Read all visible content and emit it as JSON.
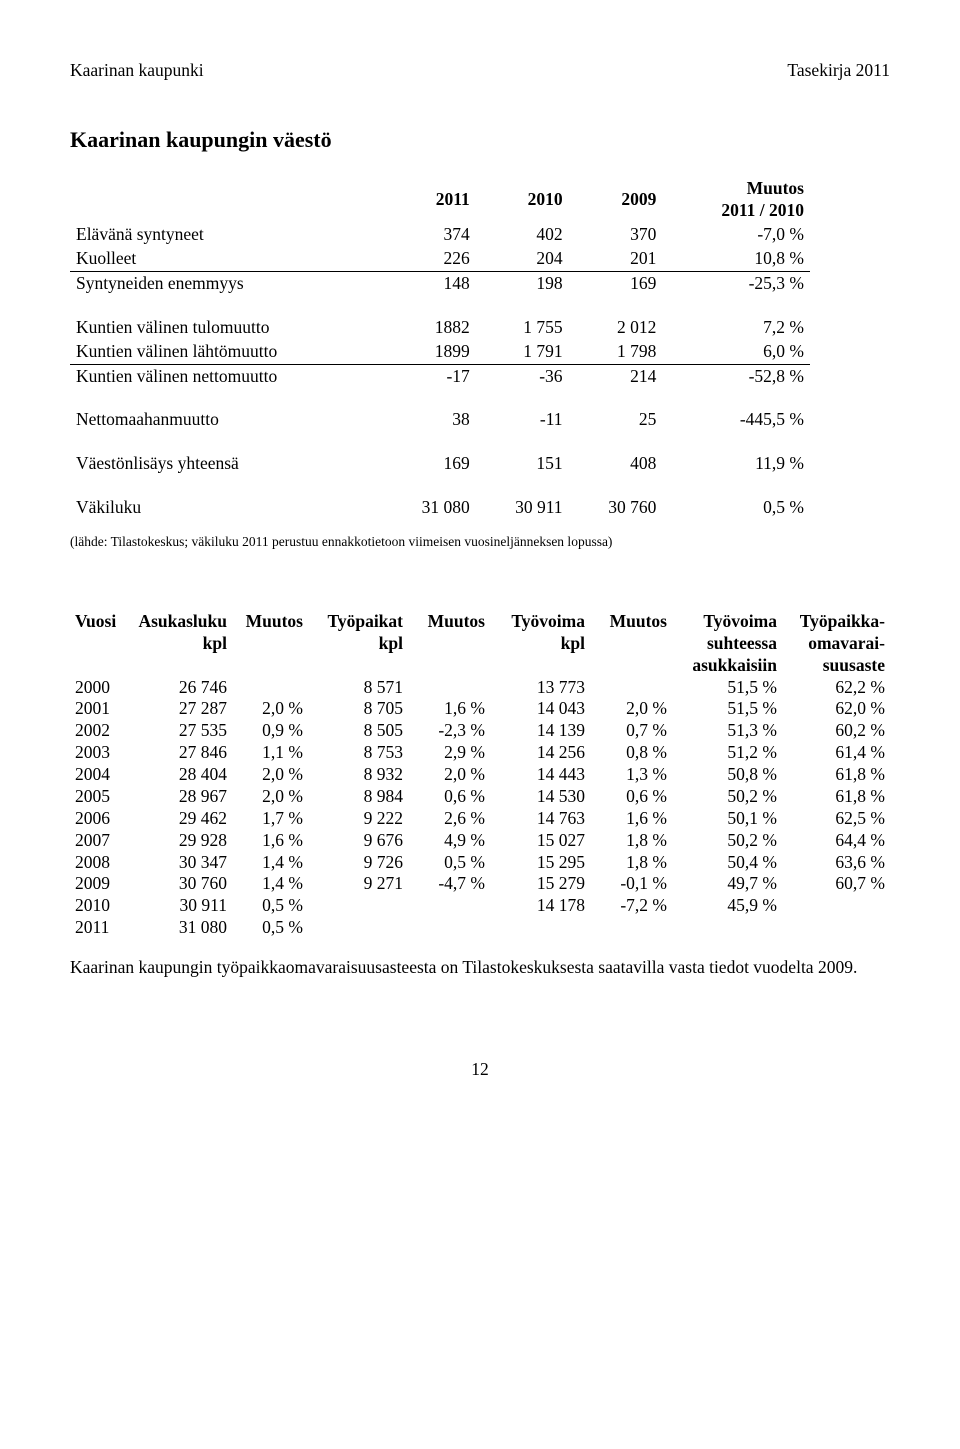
{
  "header": {
    "left": "Kaarinan kaupunki",
    "right": "Tasekirja 2011"
  },
  "title": "Kaarinan kaupungin väestö",
  "t1": {
    "head": {
      "c1": "",
      "c2": "2011",
      "c3": "2010",
      "c4": "2009",
      "c5a": "Muutos",
      "c5b": "2011 / 2010"
    },
    "rows": [
      {
        "label": "Elävänä syntyneet",
        "a": "374",
        "b": "402",
        "c": "370",
        "d": "-7,0 %",
        "border": false
      },
      {
        "label": "Kuolleet",
        "a": "226",
        "b": "204",
        "c": "201",
        "d": "10,8 %",
        "border": true
      },
      {
        "label": "Syntyneiden enemmyys",
        "a": "148",
        "b": "198",
        "c": "169",
        "d": "-25,3 %",
        "border": false
      }
    ],
    "rows2": [
      {
        "label": "Kuntien välinen tulomuutto",
        "a": "1882",
        "b": "1 755",
        "c": "2 012",
        "d": "7,2 %",
        "border": false
      },
      {
        "label": "Kuntien välinen lähtömuutto",
        "a": "1899",
        "b": "1 791",
        "c": "1 798",
        "d": "6,0 %",
        "border": true
      },
      {
        "label": "Kuntien välinen nettomuutto",
        "a": "-17",
        "b": "-36",
        "c": "214",
        "d": "-52,8 %",
        "border": false
      }
    ],
    "rows3": [
      {
        "label": "Nettomaahanmuutto",
        "a": "38",
        "b": "-11",
        "c": "25",
        "d": "-445,5 %"
      }
    ],
    "rows4": [
      {
        "label": "Väestönlisäys yhteensä",
        "a": "169",
        "b": "151",
        "c": "408",
        "d": "11,9 %"
      }
    ],
    "rows5": [
      {
        "label": "Väkiluku",
        "a": "31 080",
        "b": "30 911",
        "c": "30 760",
        "d": "0,5 %"
      }
    ]
  },
  "source_note": "(lähde: Tilastokeskus; väkiluku 2011 perustuu ennakkotietoon viimeisen vuosineljänneksen lopussa)",
  "t2": {
    "head": {
      "vuosi": "Vuosi",
      "asuk1": "Asukasluku",
      "asuk2": "kpl",
      "m1": "Muutos",
      "tyop1": "Työpaikat",
      "tyop2": "kpl",
      "m2": "Muutos",
      "tv1": "Työvoima",
      "tv2": "kpl",
      "m3": "Muutos",
      "suh1": "Työvoima",
      "suh2": "suhteessa",
      "suh3": "asukkaisiin",
      "oma1": "Työpaikka-",
      "oma2": "omavarai-",
      "oma3": "suusaste"
    },
    "rows": [
      {
        "y": "2000",
        "a": "26 746",
        "m1": "",
        "t": "8 571",
        "m2": "",
        "v": "13 773",
        "m3": "",
        "s": "51,5 %",
        "o": "62,2 %"
      },
      {
        "y": "2001",
        "a": "27 287",
        "m1": "2,0 %",
        "t": "8 705",
        "m2": "1,6 %",
        "v": "14 043",
        "m3": "2,0 %",
        "s": "51,5 %",
        "o": "62,0 %"
      },
      {
        "y": "2002",
        "a": "27 535",
        "m1": "0,9 %",
        "t": "8 505",
        "m2": "-2,3 %",
        "v": "14 139",
        "m3": "0,7 %",
        "s": "51,3 %",
        "o": "60,2 %"
      },
      {
        "y": "2003",
        "a": "27 846",
        "m1": "1,1 %",
        "t": "8 753",
        "m2": "2,9 %",
        "v": "14 256",
        "m3": "0,8 %",
        "s": "51,2 %",
        "o": "61,4 %"
      },
      {
        "y": "2004",
        "a": "28 404",
        "m1": "2,0 %",
        "t": "8 932",
        "m2": "2,0 %",
        "v": "14 443",
        "m3": "1,3 %",
        "s": "50,8 %",
        "o": "61,8 %"
      },
      {
        "y": "2005",
        "a": "28 967",
        "m1": "2,0 %",
        "t": "8 984",
        "m2": "0,6 %",
        "v": "14 530",
        "m3": "0,6 %",
        "s": "50,2 %",
        "o": "61,8 %"
      },
      {
        "y": "2006",
        "a": "29 462",
        "m1": "1,7 %",
        "t": "9 222",
        "m2": "2,6 %",
        "v": "14 763",
        "m3": "1,6 %",
        "s": "50,1 %",
        "o": "62,5 %"
      },
      {
        "y": "2007",
        "a": "29 928",
        "m1": "1,6 %",
        "t": "9 676",
        "m2": "4,9 %",
        "v": "15 027",
        "m3": "1,8 %",
        "s": "50,2 %",
        "o": "64,4 %"
      },
      {
        "y": "2008",
        "a": "30 347",
        "m1": "1,4 %",
        "t": "9 726",
        "m2": "0,5 %",
        "v": "15 295",
        "m3": "1,8 %",
        "s": "50,4 %",
        "o": "63,6 %"
      },
      {
        "y": "2009",
        "a": "30 760",
        "m1": "1,4 %",
        "t": "9 271",
        "m2": "-4,7 %",
        "v": "15 279",
        "m3": "-0,1 %",
        "s": "49,7 %",
        "o": "60,7 %"
      },
      {
        "y": "2010",
        "a": "30 911",
        "m1": "0,5 %",
        "t": "",
        "m2": "",
        "v": "14 178",
        "m3": "-7,2 %",
        "s": "45,9 %",
        "o": ""
      },
      {
        "y": "2011",
        "a": "31 080",
        "m1": "0,5 %",
        "t": "",
        "m2": "",
        "v": "",
        "m3": "",
        "s": "",
        "o": ""
      }
    ]
  },
  "footnote": "Kaarinan kaupungin työpaikkaomavaraisuusasteesta on Tilastokeskuksesta saatavilla vasta tiedot vuodelta 2009.",
  "page_number": "12"
}
